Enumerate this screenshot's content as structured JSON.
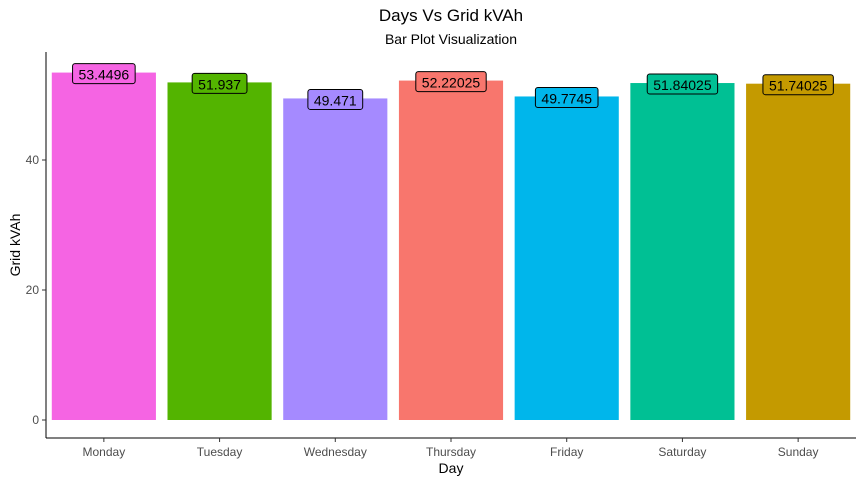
{
  "chart_data": {
    "type": "bar",
    "title": "Days Vs Grid kVAh",
    "subtitle": "Bar Plot Visualization",
    "xlabel": "Day",
    "ylabel": "Grid kVAh",
    "categories": [
      "Monday",
      "Tuesday",
      "Wednesday",
      "Thursday",
      "Friday",
      "Saturday",
      "Sunday"
    ],
    "values": [
      53.4496,
      51.937,
      49.471,
      52.22025,
      49.7745,
      51.84025,
      51.74025
    ],
    "value_labels": [
      "53.4496",
      "51.937",
      "49.471",
      "52.22025",
      "49.7745",
      "51.84025",
      "51.74025"
    ],
    "colors": [
      "#F564E3",
      "#53B400",
      "#A58AFF",
      "#F8766D",
      "#00B6EB",
      "#00C094",
      "#C49A00"
    ],
    "y_ticks": [
      0,
      20,
      40
    ],
    "y_tick_labels": [
      "0",
      "20",
      "40"
    ],
    "ylim": [
      0,
      56.1
    ],
    "grid": false,
    "legend": "none"
  }
}
